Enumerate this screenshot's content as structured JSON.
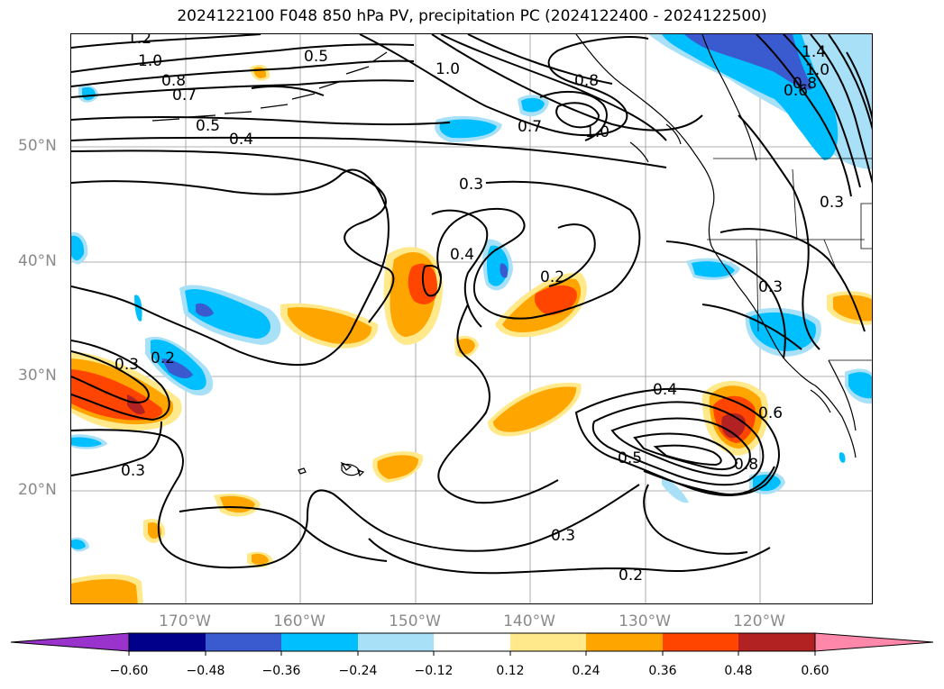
{
  "title": "2024122100 F048 850 hPa PV, precipitation PC (2024122400 - 2024122500)",
  "lat_labels": [
    "50°N",
    "40°N",
    "30°N",
    "20°N"
  ],
  "lon_labels": [
    "170°W",
    "160°W",
    "150°W",
    "140°W",
    "130°W",
    "120°W"
  ],
  "colorbar": {
    "ticks": [
      "−0.60",
      "−0.48",
      "−0.36",
      "−0.24",
      "−0.12",
      "0.12",
      "0.24",
      "0.36",
      "0.48",
      "0.60"
    ],
    "colors": [
      "#9933cc",
      "#00008b",
      "#3a5bd0",
      "#00bfff",
      "#a8e0f8",
      "#ffffff",
      "#ffe98a",
      "#ffa500",
      "#ff4500",
      "#b22222",
      "#ff88aa"
    ]
  },
  "contour_labels": [
    "1.2",
    "1.0",
    "0.8",
    "0.7",
    "0.5",
    "0.4",
    "0.5",
    "1.0",
    "0.8",
    "0.7",
    "1.0",
    "1.4",
    "1.0",
    "0.8",
    "0.6",
    "0.3",
    "0.4",
    "0.2",
    "0.3",
    "0.2",
    "0.3",
    "0.3",
    "0.4",
    "0.6",
    "0.5",
    "0.8",
    "0.3",
    "0.2",
    "0.3"
  ],
  "colors": {
    "frame": "#000000",
    "grid": "#999999",
    "axis_label": "#8a8a8a"
  }
}
